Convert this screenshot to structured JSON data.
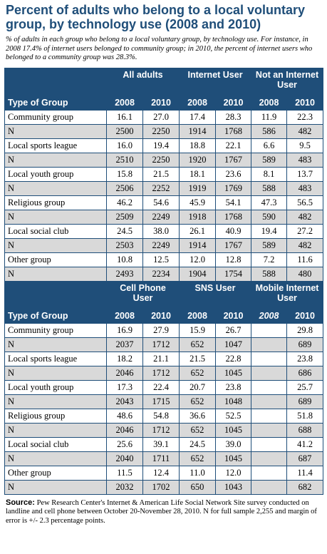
{
  "header": {
    "title": "Percent of adults who belong to a local voluntary group, by technology use (2008 and 2010)",
    "subtitle": "% of adults in each group who belong to a local voluntary group, by technology use. For instance, in 2008 17.4% of internet users belonged to community group; in 2010, the percent of internet users who belonged to a community group was 28.3%."
  },
  "chart_data": [
    {
      "type": "table",
      "groups": [
        "All adults",
        "Internet User",
        "Not an Internet User"
      ],
      "years": [
        "2008",
        "2010"
      ],
      "row_header": "Type of Group",
      "rows": [
        {
          "label": "Community group",
          "values": [
            "16.1",
            "27.0",
            "17.4",
            "28.3",
            "11.9",
            "22.3"
          ]
        },
        {
          "label": "N",
          "values": [
            "2500",
            "2250",
            "1914",
            "1768",
            "586",
            "482"
          ]
        },
        {
          "label": "Local sports league",
          "values": [
            "16.0",
            "19.4",
            "18.8",
            "22.1",
            "6.6",
            "9.5"
          ]
        },
        {
          "label": "N",
          "values": [
            "2510",
            "2250",
            "1920",
            "1767",
            "589",
            "483"
          ]
        },
        {
          "label": "Local youth group",
          "values": [
            "15.8",
            "21.5",
            "18.1",
            "23.6",
            "8.1",
            "13.7"
          ]
        },
        {
          "label": "N",
          "values": [
            "2506",
            "2252",
            "1919",
            "1769",
            "588",
            "483"
          ]
        },
        {
          "label": "Religious group",
          "values": [
            "46.2",
            "54.6",
            "45.9",
            "54.1",
            "47.3",
            "56.5"
          ]
        },
        {
          "label": "N",
          "values": [
            "2509",
            "2249",
            "1918",
            "1768",
            "590",
            "482"
          ]
        },
        {
          "label": "Local social club",
          "values": [
            "24.5",
            "38.0",
            "26.1",
            "40.9",
            "19.4",
            "27.2"
          ]
        },
        {
          "label": "N",
          "values": [
            "2503",
            "2249",
            "1914",
            "1767",
            "589",
            "482"
          ]
        },
        {
          "label": "Other group",
          "values": [
            "10.8",
            "12.5",
            "12.0",
            "12.8",
            "7.2",
            "11.6"
          ]
        },
        {
          "label": "N",
          "values": [
            "2493",
            "2234",
            "1904",
            "1754",
            "588",
            "480"
          ]
        }
      ]
    },
    {
      "type": "table",
      "groups": [
        "Cell Phone User",
        "SNS User",
        "Mobile Internet User"
      ],
      "years": [
        "2008",
        "2010"
      ],
      "row_header": "Type of Group",
      "rows": [
        {
          "label": "Community group",
          "values": [
            "16.9",
            "27.9",
            "15.9",
            "26.7",
            "",
            "29.8"
          ]
        },
        {
          "label": "N",
          "values": [
            "2037",
            "1712",
            "652",
            "1047",
            "",
            "689"
          ]
        },
        {
          "label": "Local sports league",
          "values": [
            "18.2",
            "21.1",
            "21.5",
            "22.8",
            "",
            "23.8"
          ]
        },
        {
          "label": "N",
          "values": [
            "2046",
            "1712",
            "652",
            "1045",
            "",
            "686"
          ]
        },
        {
          "label": "Local youth group",
          "values": [
            "17.3",
            "22.4",
            "20.7",
            "23.8",
            "",
            "25.7"
          ]
        },
        {
          "label": "N",
          "values": [
            "2043",
            "1715",
            "652",
            "1048",
            "",
            "689"
          ]
        },
        {
          "label": "Religious group",
          "values": [
            "48.6",
            "54.8",
            "36.6",
            "52.5",
            "",
            "51.8"
          ]
        },
        {
          "label": "N",
          "values": [
            "2046",
            "1712",
            "652",
            "1045",
            "",
            "688"
          ]
        },
        {
          "label": "Local social club",
          "values": [
            "25.6",
            "39.1",
            "24.5",
            "39.0",
            "",
            "41.2"
          ]
        },
        {
          "label": "N",
          "values": [
            "2040",
            "1711",
            "652",
            "1045",
            "",
            "687"
          ]
        },
        {
          "label": "Other group",
          "values": [
            "11.5",
            "12.4",
            "11.0",
            "12.0",
            "",
            "11.4"
          ]
        },
        {
          "label": "N",
          "values": [
            "2032",
            "1702",
            "650",
            "1043",
            "",
            "682"
          ]
        }
      ]
    }
  ],
  "source": {
    "label": "Source:",
    "text": "Pew Research Center's Internet & American Life Social Network Site survey conducted on landline and cell phone between October 20-November 28, 2010. N for full sample 2,255 and margin of error is +/- 2.3 percentage points."
  },
  "colors": {
    "header_bg": "#1f4e79",
    "n_row_bg": "#d9d9d9"
  }
}
